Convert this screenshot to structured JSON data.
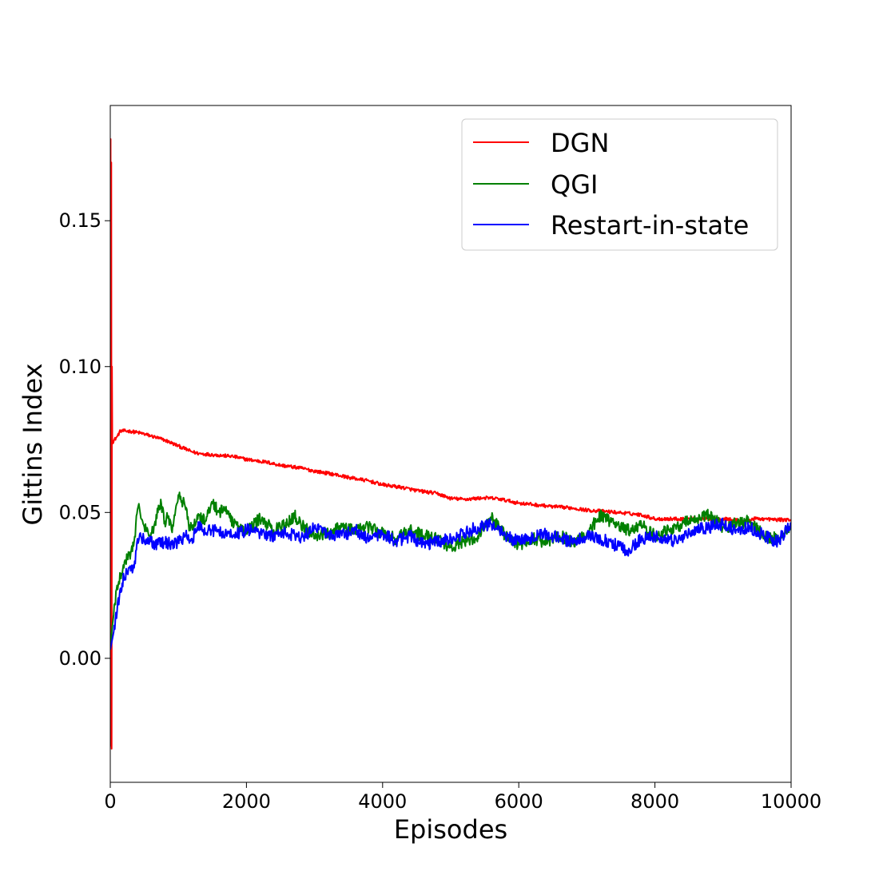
{
  "chart_data": {
    "type": "line",
    "title": "",
    "xlabel": "Episodes",
    "ylabel": "Gittins Index",
    "xlim": [
      0,
      10000
    ],
    "ylim": [
      -0.0425,
      0.1895
    ],
    "x_ticks": [
      0,
      2000,
      4000,
      6000,
      8000,
      10000
    ],
    "x_tick_labels": [
      "0",
      "2000",
      "4000",
      "6000",
      "8000",
      "10000"
    ],
    "y_ticks": [
      0.0,
      0.05,
      0.1,
      0.15
    ],
    "y_tick_labels": [
      "0.00",
      "0.05",
      "0.10",
      "0.15"
    ],
    "grid": false,
    "legend_position": "top-right",
    "series": [
      {
        "name": "DGN",
        "color": "#ff0000",
        "x": [
          0,
          5,
          10,
          15,
          20,
          25,
          30,
          100,
          150,
          300,
          450,
          600,
          800,
          1000,
          1200,
          1300,
          1500,
          1800,
          2000,
          2300,
          2500,
          2800,
          3000,
          3300,
          3500,
          3800,
          4000,
          4300,
          4500,
          4800,
          5000,
          5200,
          5500,
          5700,
          6000,
          6300,
          6500,
          6800,
          7000,
          7300,
          7500,
          7800,
          8000,
          8300,
          8500,
          8800,
          9000,
          9300,
          9500,
          9800,
          10000
        ],
        "y": [
          0.01,
          0.178,
          -0.03,
          0.17,
          -0.031,
          0.1,
          0.074,
          0.076,
          0.078,
          0.0778,
          0.0772,
          0.0762,
          0.0748,
          0.0728,
          0.0708,
          0.0702,
          0.0698,
          0.0692,
          0.0682,
          0.0672,
          0.0662,
          0.0652,
          0.0642,
          0.063,
          0.062,
          0.0608,
          0.0595,
          0.0585,
          0.0575,
          0.0565,
          0.0548,
          0.0545,
          0.055,
          0.0547,
          0.0532,
          0.0525,
          0.052,
          0.0515,
          0.0508,
          0.0503,
          0.0499,
          0.0492,
          0.0478,
          0.0478,
          0.0478,
          0.0478,
          0.0478,
          0.0472,
          0.0479,
          0.0475,
          0.0475
        ],
        "noise": 0.0006
      },
      {
        "name": "QGI",
        "color": "#008000",
        "x": [
          0,
          25,
          50,
          100,
          150,
          200,
          250,
          300,
          350,
          400,
          420,
          450,
          500,
          550,
          600,
          650,
          700,
          750,
          800,
          850,
          900,
          950,
          1000,
          1050,
          1100,
          1150,
          1200,
          1300,
          1400,
          1500,
          1600,
          1700,
          1800,
          1900,
          2000,
          2200,
          2400,
          2600,
          2700,
          2800,
          3000,
          3200,
          3400,
          3600,
          3800,
          4000,
          4200,
          4400,
          4600,
          4800,
          5000,
          5200,
          5400,
          5600,
          5800,
          6000,
          6200,
          6400,
          6600,
          6800,
          7000,
          7200,
          7400,
          7600,
          7800,
          8000,
          8200,
          8400,
          8600,
          8800,
          9000,
          9200,
          9400,
          9600,
          9800,
          10000
        ],
        "y": [
          0.004,
          0.01,
          0.015,
          0.025,
          0.029,
          0.031,
          0.035,
          0.036,
          0.04,
          0.051,
          0.053,
          0.048,
          0.045,
          0.044,
          0.043,
          0.046,
          0.05,
          0.053,
          0.047,
          0.048,
          0.044,
          0.049,
          0.056,
          0.054,
          0.052,
          0.046,
          0.045,
          0.049,
          0.047,
          0.053,
          0.05,
          0.052,
          0.046,
          0.045,
          0.043,
          0.048,
          0.044,
          0.046,
          0.049,
          0.046,
          0.042,
          0.043,
          0.045,
          0.044,
          0.045,
          0.043,
          0.041,
          0.044,
          0.042,
          0.041,
          0.038,
          0.04,
          0.042,
          0.048,
          0.042,
          0.039,
          0.041,
          0.04,
          0.042,
          0.04,
          0.043,
          0.049,
          0.046,
          0.044,
          0.046,
          0.042,
          0.044,
          0.046,
          0.048,
          0.049,
          0.045,
          0.046,
          0.047,
          0.042,
          0.041,
          0.045
        ],
        "noise": 0.0022
      },
      {
        "name": "Restart-in-state",
        "color": "#0000ff",
        "x": [
          0,
          25,
          50,
          100,
          150,
          200,
          250,
          300,
          350,
          400,
          450,
          500,
          600,
          700,
          800,
          900,
          1000,
          1100,
          1200,
          1300,
          1400,
          1500,
          1600,
          1800,
          2000,
          2200,
          2400,
          2600,
          2800,
          3000,
          3200,
          3400,
          3600,
          3800,
          4000,
          4200,
          4400,
          4600,
          4800,
          5000,
          5200,
          5400,
          5600,
          5800,
          6000,
          6200,
          6400,
          6600,
          6800,
          7000,
          7200,
          7400,
          7600,
          7800,
          8000,
          8200,
          8400,
          8600,
          8800,
          9000,
          9200,
          9400,
          9600,
          9800,
          10000
        ],
        "y": [
          0.003,
          0.006,
          0.009,
          0.016,
          0.024,
          0.028,
          0.029,
          0.03,
          0.031,
          0.041,
          0.042,
          0.04,
          0.04,
          0.039,
          0.04,
          0.039,
          0.04,
          0.042,
          0.041,
          0.045,
          0.043,
          0.044,
          0.043,
          0.042,
          0.044,
          0.043,
          0.042,
          0.043,
          0.041,
          0.045,
          0.043,
          0.042,
          0.044,
          0.041,
          0.043,
          0.04,
          0.042,
          0.039,
          0.04,
          0.041,
          0.043,
          0.045,
          0.046,
          0.042,
          0.04,
          0.041,
          0.043,
          0.041,
          0.04,
          0.042,
          0.041,
          0.039,
          0.037,
          0.041,
          0.042,
          0.04,
          0.041,
          0.044,
          0.045,
          0.046,
          0.044,
          0.045,
          0.042,
          0.04,
          0.046
        ],
        "noise": 0.0022
      }
    ]
  }
}
